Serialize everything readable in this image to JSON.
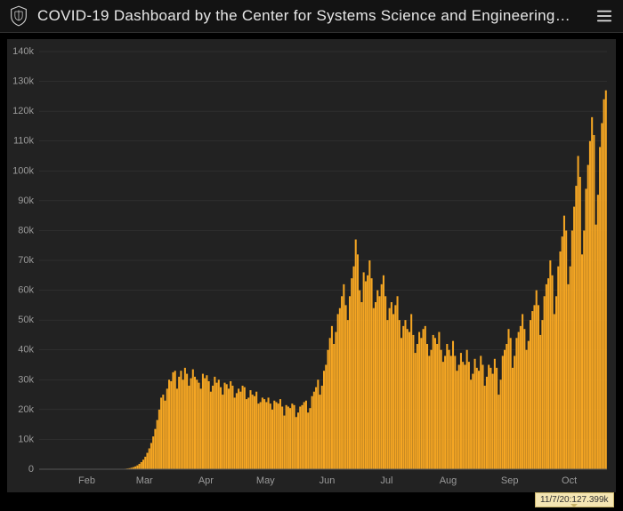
{
  "header": {
    "title": "COVID-19 Dashboard by the Center for Systems Science and Engineering…"
  },
  "chart": {
    "type": "bar",
    "background_color": "#222222",
    "bar_color": "#f5a623",
    "grid_color": "#3a3a3a",
    "axis_label_color": "#9a9a9a",
    "axis_label_fontsize": 11,
    "ylim": [
      0,
      140000
    ],
    "ytick_step": 10000,
    "ytick_suffix": "k",
    "x_month_labels": [
      "Feb",
      "Mar",
      "Apr",
      "May",
      "Jun",
      "Jul",
      "Aug",
      "Sep",
      "Oct"
    ],
    "tooltip": {
      "text": "11/7/20:127.399k",
      "index": 290
    },
    "values": [
      0,
      0,
      0,
      0,
      0,
      0,
      0,
      0,
      0,
      0,
      0,
      0,
      0,
      0,
      0,
      0,
      0,
      0,
      0,
      0,
      0,
      0,
      0,
      0,
      0,
      0,
      0,
      0,
      0,
      0,
      0,
      0,
      0,
      0,
      0,
      10,
      10,
      20,
      20,
      30,
      50,
      80,
      120,
      180,
      260,
      350,
      500,
      700,
      950,
      1300,
      1800,
      2400,
      3200,
      4200,
      5500,
      7000,
      8800,
      11000,
      13500,
      16500,
      20000,
      24000,
      25000,
      23000,
      27000,
      30000,
      29500,
      32500,
      33000,
      27000,
      31000,
      33000,
      30000,
      34000,
      32000,
      28000,
      30500,
      33500,
      31000,
      30000,
      29000,
      27000,
      32000,
      30500,
      31500,
      29500,
      26000,
      28000,
      31000,
      29000,
      30000,
      27500,
      25000,
      29000,
      28500,
      27000,
      29500,
      28000,
      24000,
      25500,
      27000,
      26000,
      28000,
      27500,
      23500,
      24000,
      26500,
      25000,
      24500,
      26000,
      22000,
      22500,
      24000,
      23500,
      22500,
      24000,
      22000,
      20000,
      23000,
      22500,
      22000,
      23500,
      21000,
      18000,
      21500,
      21000,
      20500,
      22000,
      21500,
      17500,
      19000,
      21000,
      21500,
      22500,
      23000,
      19000,
      20500,
      24500,
      26000,
      27500,
      30000,
      25000,
      28000,
      33000,
      35000,
      40000,
      44000,
      48000,
      42000,
      46000,
      52000,
      54000,
      58000,
      62000,
      55000,
      50000,
      58000,
      64000,
      68000,
      77000,
      72000,
      60000,
      56000,
      66000,
      63000,
      65000,
      70000,
      64000,
      54000,
      56000,
      60000,
      58000,
      62000,
      65000,
      58000,
      50000,
      54000,
      56000,
      52000,
      55000,
      58000,
      50000,
      44000,
      48000,
      50000,
      47000,
      46000,
      52000,
      45000,
      39000,
      42000,
      46000,
      44000,
      47000,
      48000,
      42000,
      38000,
      40000,
      45000,
      44000,
      42000,
      46000,
      40000,
      36000,
      38000,
      42000,
      40000,
      38000,
      43000,
      38000,
      33000,
      35000,
      39000,
      36000,
      35000,
      40000,
      36000,
      30000,
      32000,
      37000,
      34000,
      33000,
      38000,
      35000,
      28000,
      31000,
      35000,
      34000,
      32000,
      37000,
      34000,
      25000,
      30000,
      38000,
      40000,
      42000,
      47000,
      44000,
      34000,
      38000,
      44000,
      46000,
      48000,
      52000,
      47000,
      40000,
      43000,
      50000,
      53000,
      55000,
      60000,
      55000,
      45000,
      50000,
      58000,
      62000,
      64000,
      70000,
      65000,
      52000,
      58000,
      68000,
      73000,
      78000,
      85000,
      80000,
      62000,
      68000,
      80000,
      88000,
      95000,
      105000,
      98000,
      72000,
      80000,
      94000,
      102000,
      110000,
      118000,
      112000,
      82000,
      92000,
      108000,
      116000,
      124000,
      127000
    ]
  }
}
